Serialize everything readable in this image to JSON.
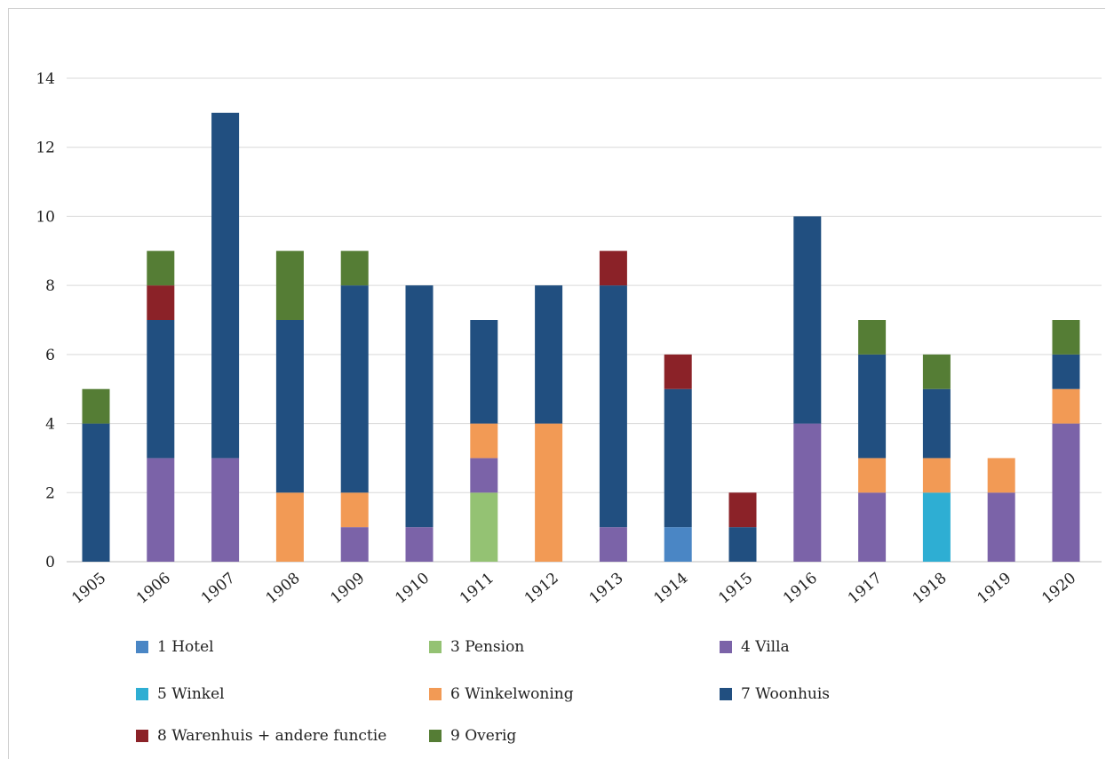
{
  "chart_data": {
    "type": "bar",
    "stacked": true,
    "title": "",
    "xlabel": "",
    "ylabel": "",
    "ylim": [
      0,
      14
    ],
    "yticks": [
      0,
      2,
      4,
      6,
      8,
      10,
      12,
      14
    ],
    "grid": true,
    "legend_position": "bottom",
    "categories": [
      "1905",
      "1906",
      "1907",
      "1908",
      "1909",
      "1910",
      "1911",
      "1912",
      "1913",
      "1914",
      "1915",
      "1916",
      "1917",
      "1918",
      "1919",
      "1920"
    ],
    "series": [
      {
        "name": "1 Hotel",
        "color": "#4a86c5",
        "values": [
          0,
          0,
          0,
          0,
          0,
          0,
          0,
          0,
          0,
          1,
          0,
          0,
          0,
          0,
          0,
          0
        ]
      },
      {
        "name": "3 Pension",
        "color": "#94c273",
        "values": [
          0,
          0,
          0,
          0,
          0,
          0,
          2,
          0,
          0,
          0,
          0,
          0,
          0,
          0,
          0,
          0
        ]
      },
      {
        "name": "4 Villa",
        "color": "#7b63a8",
        "values": [
          0,
          3,
          3,
          0,
          1,
          1,
          1,
          0,
          1,
          0,
          0,
          4,
          2,
          0,
          2,
          4
        ]
      },
      {
        "name": "5 Winkel",
        "color": "#2eaed3",
        "values": [
          0,
          0,
          0,
          0,
          0,
          0,
          0,
          0,
          0,
          0,
          0,
          0,
          0,
          2,
          0,
          0
        ]
      },
      {
        "name": "6 Winkelwoning",
        "color": "#f29a55",
        "values": [
          0,
          0,
          0,
          2,
          1,
          0,
          1,
          4,
          0,
          0,
          0,
          0,
          1,
          1,
          1,
          1
        ]
      },
      {
        "name": "7 Woonhuis",
        "color": "#214f80",
        "values": [
          4,
          4,
          10,
          5,
          6,
          7,
          3,
          4,
          7,
          4,
          1,
          6,
          3,
          2,
          0,
          1
        ]
      },
      {
        "name": "8 Warenhuis + andere functie",
        "color": "#8b2228",
        "values": [
          0,
          1,
          0,
          0,
          0,
          0,
          0,
          0,
          1,
          1,
          1,
          0,
          0,
          0,
          0,
          0
        ]
      },
      {
        "name": "9 Overig",
        "color": "#557d35",
        "values": [
          1,
          1,
          0,
          2,
          1,
          0,
          0,
          0,
          0,
          0,
          0,
          0,
          1,
          1,
          0,
          1
        ]
      }
    ]
  }
}
